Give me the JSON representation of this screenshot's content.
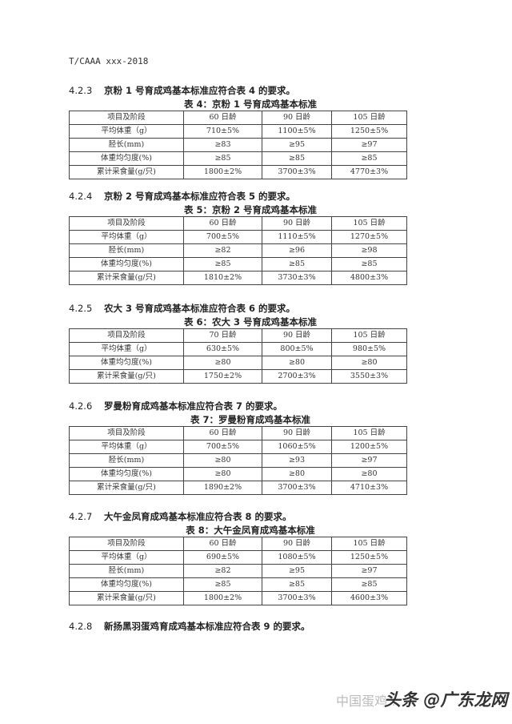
{
  "header": {
    "doc_id": "T/CAAA xxx-2018"
  },
  "sections": [
    {
      "number": "4.2.3",
      "text": "京粉 1 号育成鸡基本标准应符合表 4 的要求。",
      "table": {
        "caption": "表 4：京粉 1 号育成鸡基本标准",
        "rows": [
          [
            "项目及阶段",
            "60 日龄",
            "90 日龄",
            "105 日龄"
          ],
          [
            "平均体重（g）",
            "710±5%",
            "1100±5%",
            "1250±5%"
          ],
          [
            "胫长(mm)",
            "≥83",
            "≥95",
            "≥97"
          ],
          [
            "体重均匀度(%)",
            "≥85",
            "≥85",
            "≥85"
          ],
          [
            "累计采食量(g/只)",
            "1800±2%",
            "3700±3%",
            "4770±3%"
          ]
        ]
      }
    },
    {
      "number": "4.2.4",
      "text": "京粉 2 号育成鸡基本标准应符合表 5 的要求。",
      "table": {
        "caption": "表 5：京粉 2 号育成鸡基本标准",
        "rows": [
          [
            "项目及阶段",
            "60 日龄",
            "90 日龄",
            "105 日龄"
          ],
          [
            "平均体重（g）",
            "700±5%",
            "1110±5%",
            "1270±5%"
          ],
          [
            "胫长(mm)",
            "≥82",
            "≥96",
            "≥98"
          ],
          [
            "体重均匀度(%)",
            "≥85",
            "≥85",
            "≥85"
          ],
          [
            "累计采食量(g/只)",
            "1810±2%",
            "3730±3%",
            "4800±3%"
          ]
        ]
      }
    },
    {
      "number": "4.2.5",
      "text": "农大 3 号育成鸡基本标准应符合表 6 的要求。",
      "table": {
        "caption": "表 6：农大 3 号育成鸡基本标准",
        "rows": [
          [
            "项目及阶段",
            "70 日龄",
            "90 日龄",
            "105 日龄"
          ],
          [
            "平均体重（g）",
            "630±5%",
            "800±5%",
            "980±5%"
          ],
          [
            "体重均匀度(%)",
            "≥80",
            "≥80",
            "≥80"
          ],
          [
            "累计采食量(g/只)",
            "1750±2%",
            "2700±3%",
            "3550±3%"
          ]
        ]
      }
    },
    {
      "number": "4.2.6",
      "text": "罗曼粉育成鸡基本标准应符合表 7 的要求。",
      "table": {
        "caption": "表 7：罗曼粉育成鸡基本标准",
        "rows": [
          [
            "项目及阶段",
            "60 日龄",
            "90 日龄",
            "105 日龄"
          ],
          [
            "平均体重（g）",
            "700±5%",
            "1060±5%",
            "1200±5%"
          ],
          [
            "胫长(mm)",
            "≥80",
            "≥93",
            "≥97"
          ],
          [
            "体重均匀度(%)",
            "≥80",
            "≥80",
            "≥80"
          ],
          [
            "累计采食量(g/只)",
            "1890±2%",
            "3700±3%",
            "4710±3%"
          ]
        ]
      }
    },
    {
      "number": "4.2.7",
      "text": "大午金凤育成鸡基本标准应符合表 8 的要求。",
      "table": {
        "caption": "表 8：大午金凤育成鸡基本标准",
        "rows": [
          [
            "项目及阶段",
            "60 日龄",
            "90 日龄",
            "105 日龄"
          ],
          [
            "平均体重（g）",
            "690±5%",
            "1080±5%",
            "1250±5%"
          ],
          [
            "胫长(mm)",
            "≥82",
            "≥95",
            "≥97"
          ],
          [
            "体重均匀度(%)",
            "≥85",
            "≥85",
            "≥85"
          ],
          [
            "累计采食量(g/只)",
            "1800±2%",
            "3700±3%",
            "4600±3%"
          ]
        ]
      }
    },
    {
      "number": "4.2.8",
      "text": "新扬黑羽蛋鸡育成鸡基本标准应符合表 9 的要求。"
    }
  ],
  "watermark": {
    "source": "中国蛋鸡…",
    "overlay": "头条 @广东龙网"
  }
}
